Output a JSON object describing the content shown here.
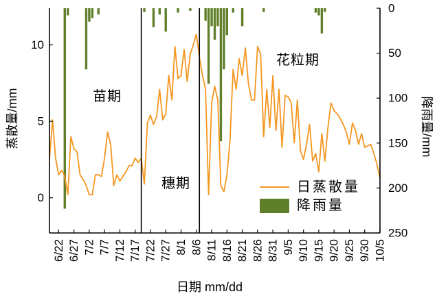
{
  "chart_data": {
    "type": "line",
    "xlabel": "日期 mm/dd",
    "ylabel": "蒸散量/mm",
    "ylabel_right": "降雨量/mm",
    "xlim": [
      "6/19",
      "10/5"
    ],
    "ylim": [
      -2.3,
      12.4
    ],
    "ylim_right": [
      0,
      250
    ],
    "right_axis_inverted": true,
    "xticks": [
      "6/22",
      "6/27",
      "7/2",
      "7/7",
      "7/12",
      "7/17",
      "7/22",
      "7/27",
      "8/1",
      "8/6",
      "8/11",
      "8/16",
      "8/21",
      "8/26",
      "8/31",
      "9/5",
      "9/10",
      "9/15",
      "9/20",
      "9/25",
      "9/30",
      "10/5"
    ],
    "yticks": [
      0,
      5,
      10
    ],
    "yticks_right": [
      0,
      50,
      100,
      150,
      200,
      250
    ],
    "grid": false,
    "legend_position": "lower-right",
    "stage_boundaries": [
      "7/19",
      "8/7"
    ],
    "annotations": [
      "苗期",
      "穗期",
      "花粒期"
    ],
    "series": [
      {
        "name": "日蒸散量",
        "type": "line",
        "axis": "left",
        "color": "#f5961f",
        "x": [
          "6/19",
          "6/20",
          "6/21",
          "6/22",
          "6/23",
          "6/24",
          "6/25",
          "6/26",
          "6/27",
          "6/28",
          "6/29",
          "6/30",
          "7/1",
          "7/2",
          "7/3",
          "7/4",
          "7/5",
          "7/6",
          "7/7",
          "7/8",
          "7/9",
          "7/10",
          "7/11",
          "7/12",
          "7/13",
          "7/14",
          "7/15",
          "7/16",
          "7/17",
          "7/18",
          "7/19",
          "7/20",
          "7/21",
          "7/22",
          "7/23",
          "7/24",
          "7/25",
          "7/26",
          "7/27",
          "7/28",
          "7/29",
          "7/30",
          "7/31",
          "8/1",
          "8/2",
          "8/3",
          "8/4",
          "8/5",
          "8/6",
          "8/7",
          "8/8",
          "8/9",
          "8/10",
          "8/11",
          "8/12",
          "8/13",
          "8/14",
          "8/15",
          "8/16",
          "8/17",
          "8/18",
          "8/19",
          "8/20",
          "8/21",
          "8/22",
          "8/23",
          "8/24",
          "8/25",
          "8/26",
          "8/27",
          "8/28",
          "8/29",
          "8/30",
          "8/31",
          "9/1",
          "9/2",
          "9/3",
          "9/4",
          "9/5",
          "9/6",
          "9/7",
          "9/8",
          "9/9",
          "9/10",
          "9/11",
          "9/12",
          "9/13",
          "9/14",
          "9/15",
          "9/16",
          "9/17",
          "9/18",
          "9/19",
          "9/20",
          "9/21",
          "9/22",
          "9/23",
          "9/24",
          "9/25",
          "9/26",
          "9/27",
          "9/28",
          "9/29",
          "9/30",
          "10/1",
          "10/2",
          "10/3",
          "10/4",
          "10/5"
        ],
        "y": [
          2.5,
          5.1,
          2.6,
          1.5,
          1.8,
          1.4,
          0.2,
          4.0,
          3.2,
          3.0,
          1.5,
          1.2,
          0.8,
          0.2,
          0.2,
          1.5,
          1.5,
          1.4,
          2.6,
          4.3,
          3.5,
          0.8,
          1.5,
          1.1,
          1.4,
          1.7,
          2.1,
          2.1,
          2.6,
          2.3,
          2.6,
          0.9,
          4.9,
          5.4,
          4.8,
          5.3,
          7.1,
          5.1,
          5.5,
          8.0,
          6.4,
          9.9,
          7.8,
          8.0,
          9.7,
          7.6,
          9.4,
          10.0,
          10.7,
          9.2,
          8.0,
          7.1,
          0.2,
          6.2,
          7.3,
          6.4,
          0.8,
          0.4,
          1.5,
          3.8,
          8.4,
          7.1,
          9.1,
          8.0,
          9.8,
          7.5,
          6.4,
          6.4,
          9.9,
          9.4,
          4.0,
          7.1,
          4.6,
          8.0,
          4.4,
          7.1,
          3.3,
          6.7,
          6.6,
          6.2,
          3.6,
          6.4,
          3.1,
          2.5,
          3.5,
          4.8,
          2.4,
          2.9,
          1.7,
          4.2,
          2.4,
          4.6,
          6.2,
          5.7,
          5.5,
          5.2,
          4.8,
          4.3,
          3.5,
          4.9,
          4.4,
          3.5,
          4.2,
          3.3,
          3.4,
          3.5,
          2.9,
          2.2,
          1.3
        ]
      },
      {
        "name": "降雨量",
        "type": "bar",
        "axis": "right",
        "color": "#5f7f2b",
        "x": [
          "6/24",
          "6/25",
          "7/1",
          "7/2",
          "7/3",
          "7/5",
          "7/20",
          "7/23",
          "7/25",
          "7/27",
          "7/31",
          "8/4",
          "8/9",
          "8/10",
          "8/11",
          "8/12",
          "8/13",
          "8/14",
          "8/15",
          "8/16",
          "8/18",
          "8/21",
          "8/28",
          "9/14",
          "9/15",
          "9/16",
          "9/17"
        ],
        "y": [
          223,
          8,
          68,
          15,
          11,
          7,
          4,
          21,
          7,
          26,
          5,
          3,
          14,
          84,
          20,
          35,
          20,
          148,
          68,
          30,
          5,
          20,
          4,
          5,
          8,
          28,
          4
        ]
      }
    ]
  }
}
